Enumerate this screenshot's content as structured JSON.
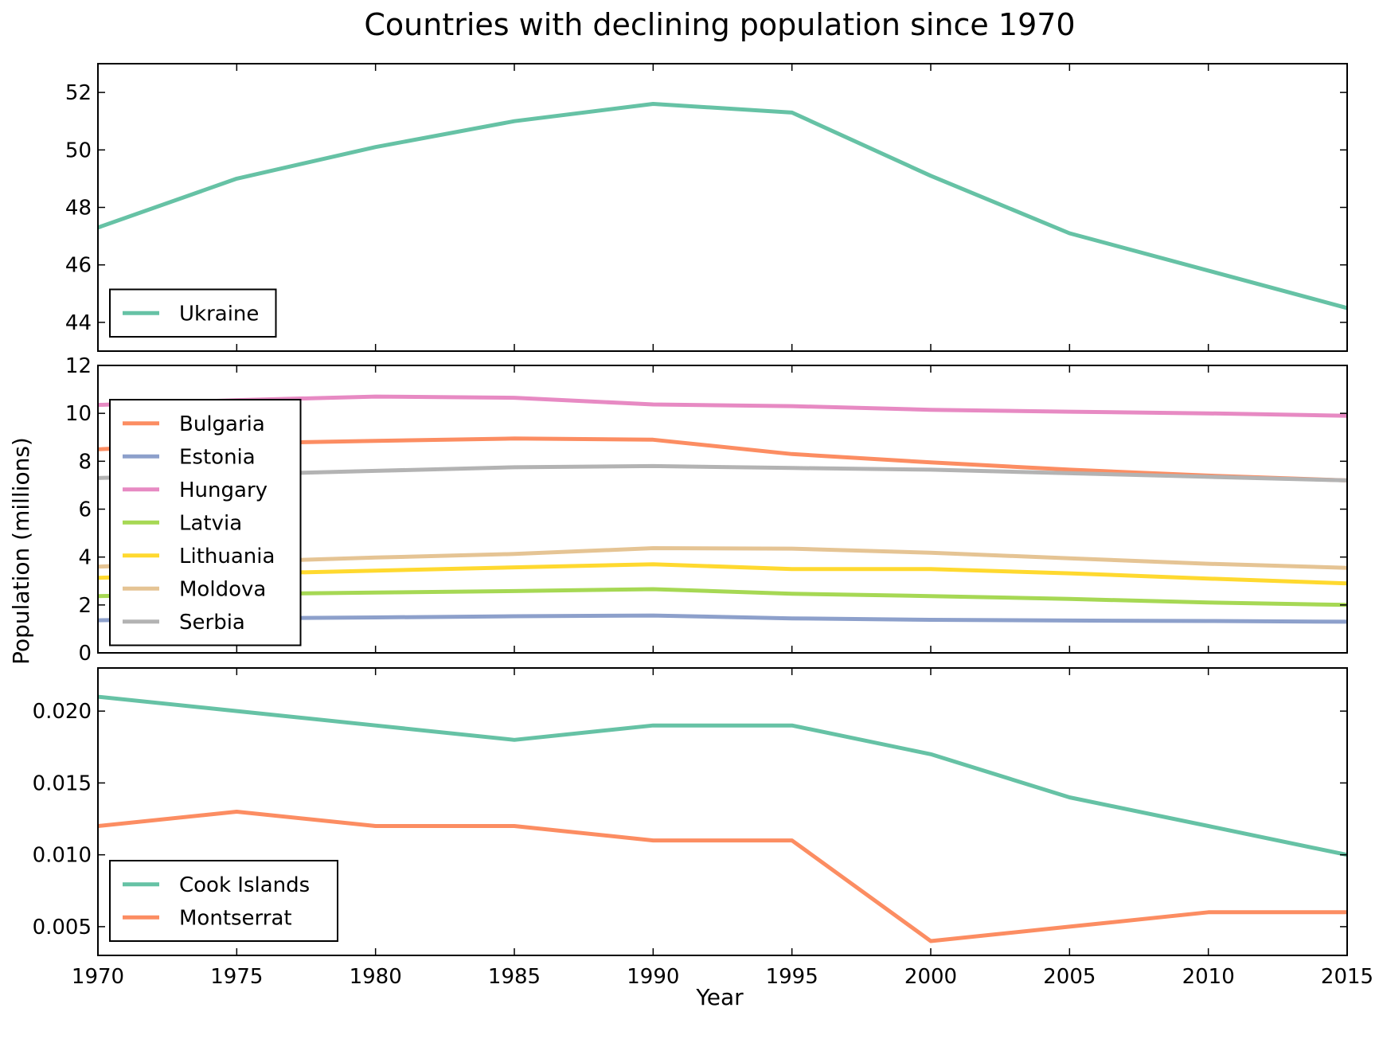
{
  "title": "Countries with declining population since 1970",
  "xlabel": "Year",
  "ylabel": "Population (millions)",
  "chart_data": {
    "type": "line",
    "x": [
      1970,
      1975,
      1980,
      1985,
      1990,
      1995,
      2000,
      2005,
      2010,
      2015
    ],
    "xlim": [
      1970,
      2015
    ],
    "x_ticks": [
      "1970",
      "1975",
      "1980",
      "1985",
      "1990",
      "1995",
      "2000",
      "2005",
      "2010",
      "2015"
    ],
    "grid": false,
    "panels": [
      {
        "ylim": [
          43,
          53
        ],
        "y_ticks": [
          44,
          46,
          48,
          50,
          52
        ],
        "y_tick_labels": [
          "44",
          "46",
          "48",
          "50",
          "52"
        ],
        "legend_position": "lower-left",
        "series": [
          {
            "name": "Ukraine",
            "color": "#66c2a5",
            "values": [
              47.3,
              49.0,
              50.1,
              51.0,
              51.6,
              51.3,
              49.1,
              47.1,
              45.8,
              44.5
            ]
          }
        ]
      },
      {
        "ylim": [
          0,
          12
        ],
        "y_ticks": [
          0,
          2,
          4,
          6,
          8,
          10,
          12
        ],
        "y_tick_labels": [
          "0",
          "2",
          "4",
          "6",
          "8",
          "10",
          "12"
        ],
        "legend_position": "left",
        "series": [
          {
            "name": "Bulgaria",
            "color": "#fc8d62",
            "values": [
              8.5,
              8.75,
              8.85,
              8.95,
              8.9,
              8.3,
              7.95,
              7.65,
              7.4,
              7.2
            ]
          },
          {
            "name": "Estonia",
            "color": "#8da0cb",
            "values": [
              1.36,
              1.44,
              1.48,
              1.53,
              1.56,
              1.44,
              1.38,
              1.35,
              1.33,
              1.3
            ]
          },
          {
            "name": "Hungary",
            "color": "#e78ac3",
            "values": [
              10.35,
              10.55,
              10.7,
              10.65,
              10.37,
              10.3,
              10.15,
              10.07,
              10.0,
              9.9
            ]
          },
          {
            "name": "Latvia",
            "color": "#a6d854",
            "values": [
              2.37,
              2.45,
              2.52,
              2.58,
              2.66,
              2.47,
              2.37,
              2.25,
              2.1,
              2.0
            ]
          },
          {
            "name": "Lithuania",
            "color": "#ffd92f",
            "values": [
              3.13,
              3.3,
              3.43,
              3.57,
              3.7,
              3.5,
              3.5,
              3.32,
              3.1,
              2.9
            ]
          },
          {
            "name": "Moldova",
            "color": "#e5c494",
            "values": [
              3.6,
              3.8,
              3.98,
              4.13,
              4.37,
              4.35,
              4.18,
              3.95,
              3.72,
              3.55
            ]
          },
          {
            "name": "Serbia",
            "color": "#b3b3b3",
            "values": [
              7.3,
              7.45,
              7.6,
              7.75,
              7.8,
              7.72,
              7.65,
              7.5,
              7.35,
              7.2
            ]
          }
        ]
      },
      {
        "ylim": [
          0.003,
          0.023
        ],
        "y_ticks": [
          0.005,
          0.01,
          0.015,
          0.02
        ],
        "y_tick_labels": [
          "0.005",
          "0.010",
          "0.015",
          "0.020"
        ],
        "legend_position": "lower-left",
        "series": [
          {
            "name": "Cook Islands",
            "color": "#66c2a5",
            "values": [
              0.021,
              0.02,
              0.019,
              0.018,
              0.019,
              0.019,
              0.017,
              0.014,
              0.012,
              0.01
            ]
          },
          {
            "name": "Montserrat",
            "color": "#fc8d62",
            "values": [
              0.012,
              0.013,
              0.012,
              0.012,
              0.011,
              0.011,
              0.004,
              0.005,
              0.006,
              0.006
            ]
          }
        ]
      }
    ]
  }
}
